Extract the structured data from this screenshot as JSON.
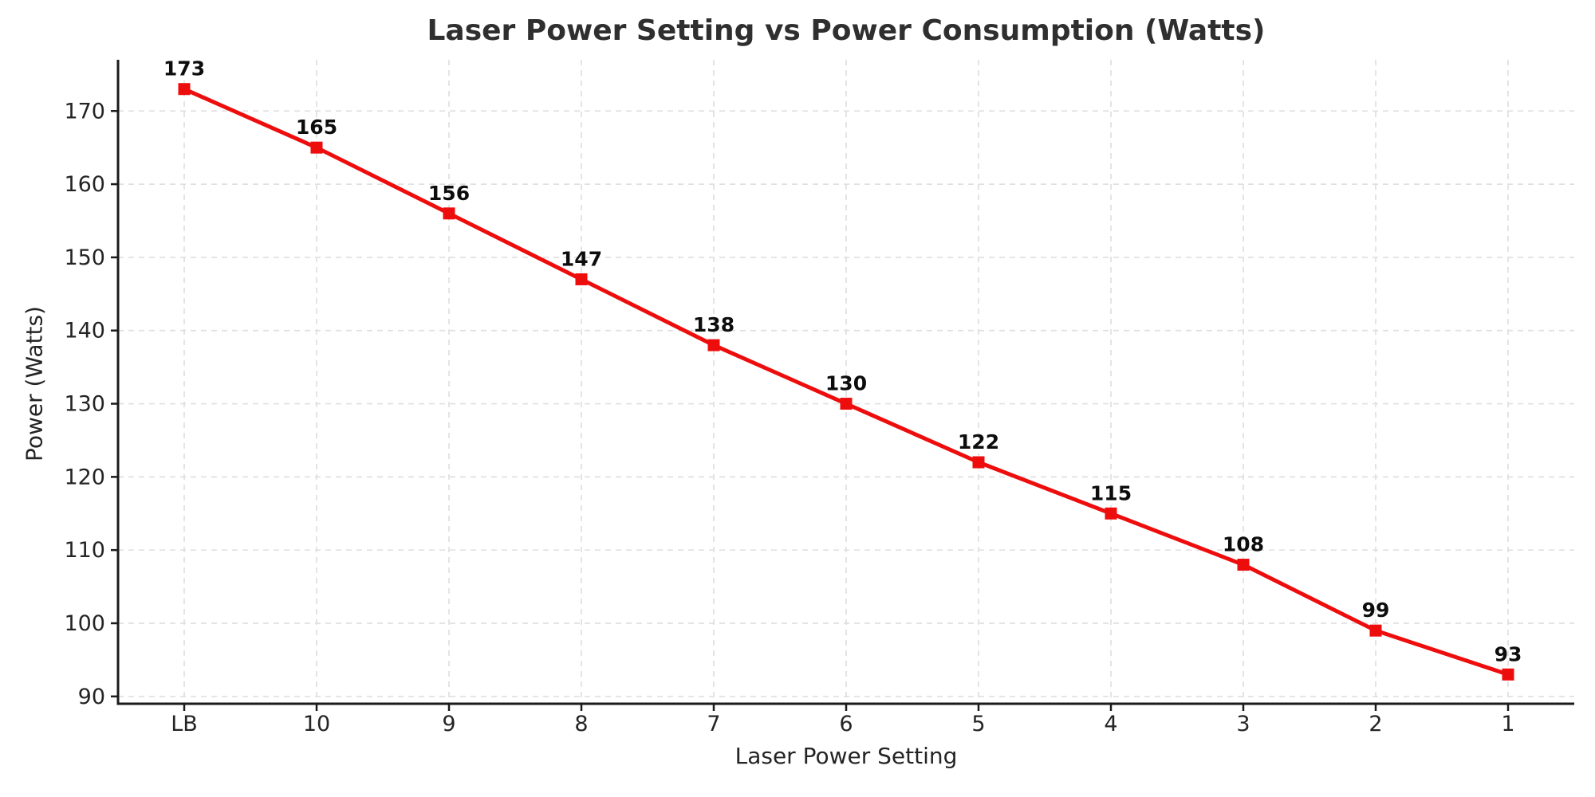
{
  "chart_data": {
    "type": "line",
    "title": "Laser Power Setting vs Power Consumption (Watts)",
    "xlabel": "Laser Power Setting",
    "ylabel": "Power (Watts)",
    "categories": [
      "LB",
      "10",
      "9",
      "8",
      "7",
      "6",
      "5",
      "4",
      "3",
      "2",
      "1"
    ],
    "values": [
      173,
      165,
      156,
      147,
      138,
      130,
      122,
      115,
      108,
      99,
      93
    ],
    "yticks": [
      90,
      100,
      110,
      120,
      130,
      140,
      150,
      160,
      170
    ],
    "ylim": [
      89,
      177
    ],
    "xlim": [
      -0.5,
      10.5
    ],
    "grid": "dashed-both-axes",
    "legend": "none",
    "marker": "square",
    "data_labels": "above-points",
    "colors": {
      "line": "#ee0d0d",
      "marker": "#ee0d0d",
      "grid": "#e0e0e0",
      "spine": "#1b1b1b",
      "title_text": "#2f2f2f",
      "axis_text": "#242424",
      "data_label_text": "#0d0d0d",
      "background": "#ffffff"
    }
  }
}
